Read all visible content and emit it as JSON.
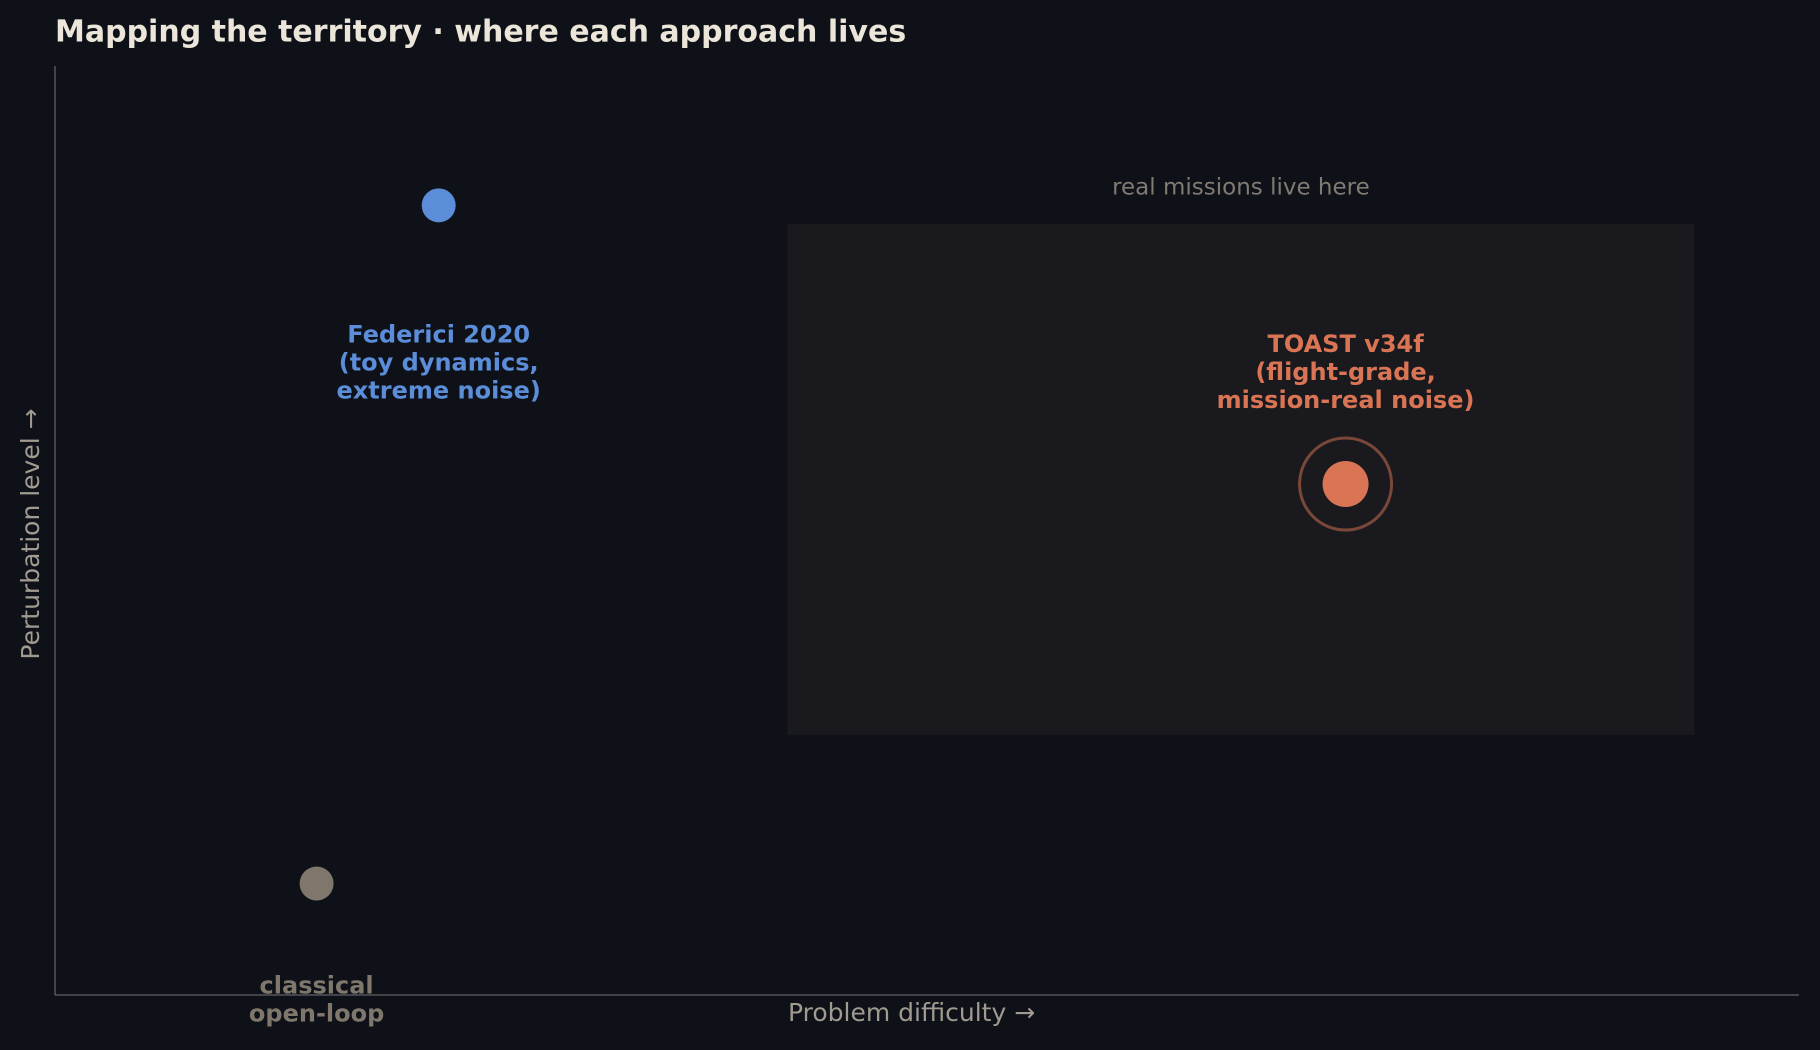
{
  "chart_data": {
    "type": "scatter",
    "title": "Mapping the territory  ·  where each approach lives",
    "xlabel": "Problem difficulty  →",
    "ylabel": "Perturbation level  →",
    "xlim": [
      0,
      10
    ],
    "ylim": [
      0,
      10
    ],
    "region": {
      "label": "real missions live here",
      "x": [
        4.2,
        9.4
      ],
      "y": [
        2.8,
        8.3
      ],
      "color": "#1a1a1e"
    },
    "points": [
      {
        "label_lines": [
          "classical",
          "open-loop"
        ],
        "x": 1.5,
        "y": 1.2,
        "color": "#7f776b"
      },
      {
        "label_lines": [
          "Federici 2020",
          "(toy dynamics,",
          "extreme noise)"
        ],
        "x": 2.2,
        "y": 8.5,
        "color": "#5b8dd9"
      },
      {
        "label_lines": [
          "TOAST v34f",
          "(flight-grade,",
          "mission-real noise)"
        ],
        "x": 7.4,
        "y": 5.5,
        "color": "#d97454",
        "highlight": true
      }
    ]
  }
}
